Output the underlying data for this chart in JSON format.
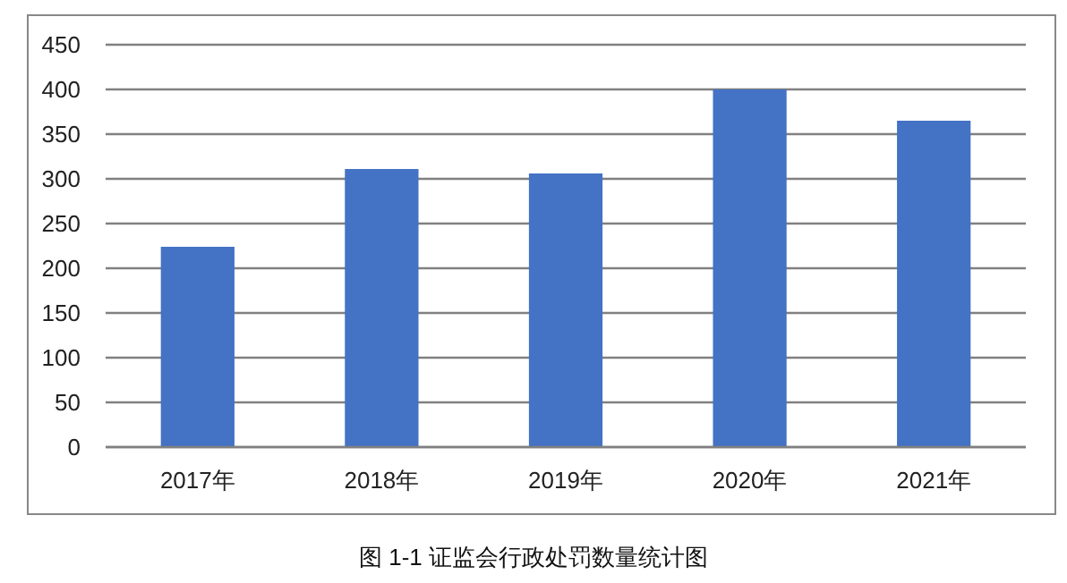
{
  "chart_data": {
    "type": "bar",
    "categories": [
      "2017年",
      "2018年",
      "2019年",
      "2020年",
      "2021年"
    ],
    "values": [
      224,
      311,
      306,
      400,
      365
    ],
    "color": "#4472c4",
    "ylim": [
      0,
      450
    ],
    "yticks": [
      0,
      50,
      100,
      150,
      200,
      250,
      300,
      350,
      400,
      450
    ],
    "grid": "y",
    "annotations": [
      "图 1-1 证监会行政处罚数量统计图"
    ]
  }
}
